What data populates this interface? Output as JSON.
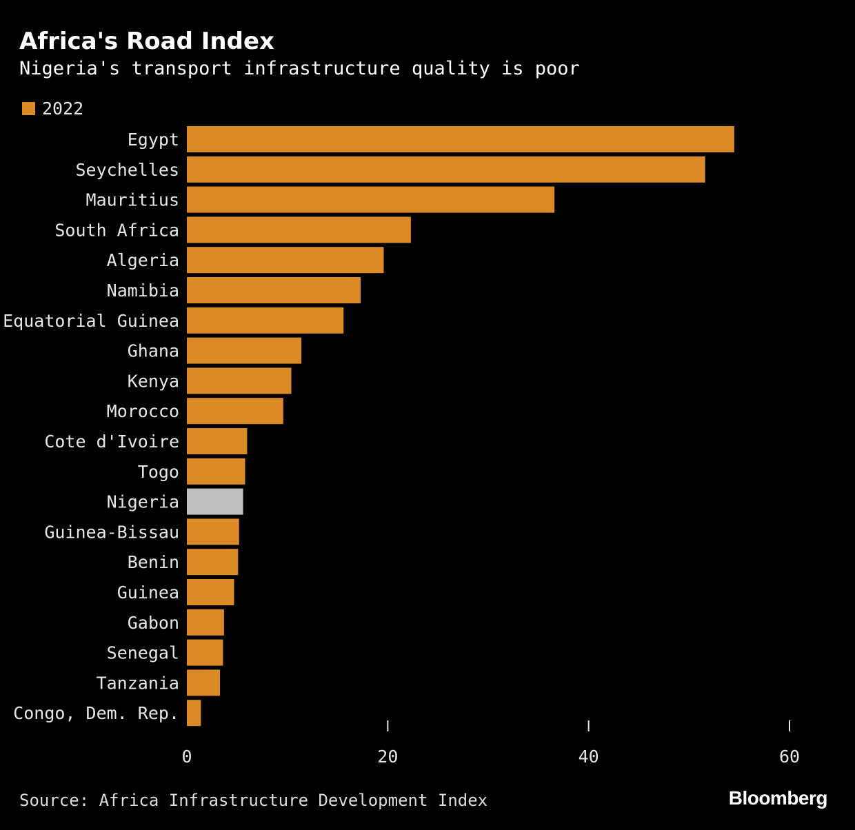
{
  "chart_data": {
    "type": "bar",
    "orientation": "horizontal",
    "title": "Africa's Road Index",
    "subtitle": "Nigeria's transport infrastructure quality is poor",
    "legend": [
      "2022"
    ],
    "legend_placement": "top-left",
    "categories": [
      "Egypt",
      "Seychelles",
      "Mauritius",
      "South Africa",
      "Algeria",
      "Namibia",
      "Equatorial Guinea",
      "Ghana",
      "Kenya",
      "Morocco",
      "Cote d'Ivoire",
      "Togo",
      "Nigeria",
      "Guinea-Bissau",
      "Benin",
      "Guinea",
      "Gabon",
      "Senegal",
      "Tanzania",
      "Congo, Dem. Rep."
    ],
    "series": [
      {
        "name": "2022",
        "values": [
          54.5,
          51.6,
          36.6,
          22.3,
          19.6,
          17.3,
          15.6,
          11.4,
          10.4,
          9.6,
          6.0,
          5.8,
          5.6,
          5.2,
          5.1,
          4.7,
          3.7,
          3.6,
          3.3,
          1.4
        ]
      }
    ],
    "highlight": "Nigeria",
    "xlim": [
      0,
      60
    ],
    "xticks": [
      0,
      20,
      40,
      60
    ],
    "xlabel": "",
    "ylabel": "",
    "colors": {
      "bar": "#dc8a25",
      "highlight": "#c0c0c0",
      "text": "#e6e6e6"
    }
  },
  "source": "Source: Africa Infrastructure Development Index",
  "brand": "Bloomberg"
}
